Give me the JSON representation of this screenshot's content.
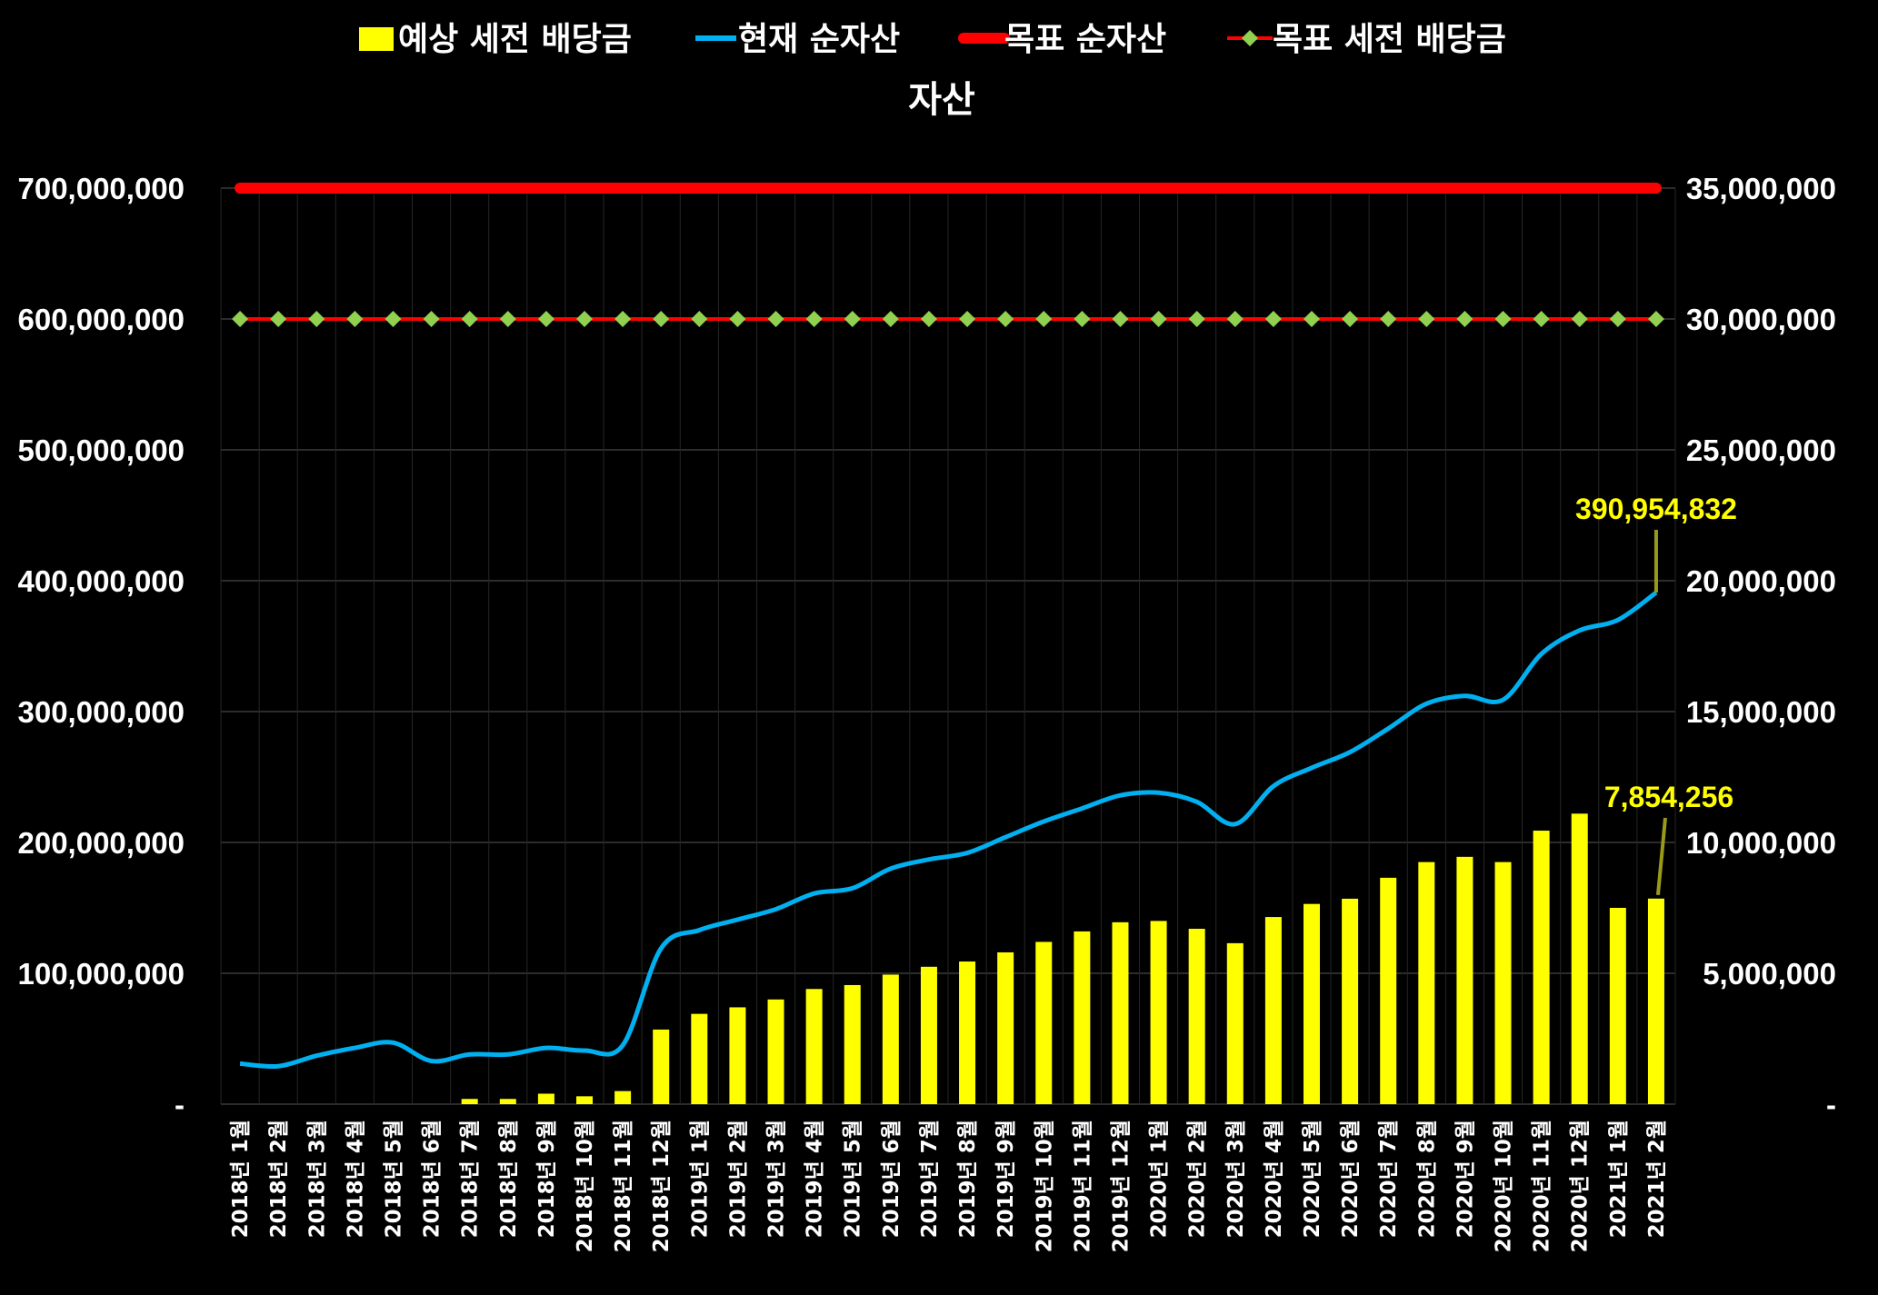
{
  "chart_data": {
    "type": "bar",
    "title": "자산",
    "legend_position": "top",
    "grid": true,
    "categories": [
      "2018년 1월",
      "2018년 2월",
      "2018년 3월",
      "2018년 4월",
      "2018년 5월",
      "2018년 6월",
      "2018년 7월",
      "2018년 8월",
      "2018년 9월",
      "2018년 10월",
      "2018년 11월",
      "2018년 12월",
      "2019년 1월",
      "2019년 2월",
      "2019년 3월",
      "2019년 4월",
      "2019년 5월",
      "2019년 6월",
      "2019년 7월",
      "2019년 8월",
      "2019년 9월",
      "2019년 10월",
      "2019년 11월",
      "2019년 12월",
      "2020년 1월",
      "2020년 2월",
      "2020년 3월",
      "2020년 4월",
      "2020년 5월",
      "2020년 6월",
      "2020년 7월",
      "2020년 8월",
      "2020년 9월",
      "2020년 10월",
      "2020년 11월",
      "2020년 12월",
      "2021년 1월",
      "2021년 2월"
    ],
    "y_left": {
      "ylim": [
        0,
        700000000
      ],
      "ticks": [
        0,
        100000000,
        200000000,
        300000000,
        400000000,
        500000000,
        600000000,
        700000000
      ],
      "tick_labels": [
        "-",
        "100,000,000",
        "200,000,000",
        "300,000,000",
        "400,000,000",
        "500,000,000",
        "600,000,000",
        "700,000,000"
      ]
    },
    "y_right": {
      "ylim": [
        0,
        35000000
      ],
      "ticks": [
        0,
        5000000,
        10000000,
        15000000,
        20000000,
        25000000,
        30000000,
        35000000
      ],
      "tick_labels": [
        "-",
        "5,000,000",
        "10,000,000",
        "15,000,000",
        "20,000,000",
        "25,000,000",
        "30,000,000",
        "35,000,000"
      ]
    },
    "series": [
      {
        "name": "예상 세전 배당금",
        "type": "bar",
        "axis": "right",
        "color": "#ffff00",
        "values": [
          0,
          0,
          0,
          0,
          0,
          0,
          200000,
          200000,
          400000,
          300000,
          500000,
          2850000,
          3450000,
          3700000,
          4000000,
          4400000,
          4550000,
          4950000,
          5250000,
          5450000,
          5800000,
          6200000,
          6600000,
          6950000,
          7000000,
          6700000,
          6150000,
          7150000,
          7650000,
          7850000,
          8650000,
          9250000,
          9450000,
          9250000,
          10450000,
          11100000,
          7500000,
          7854256
        ]
      },
      {
        "name": "현재 순자산",
        "type": "line",
        "axis": "left",
        "color": "#00b0f0",
        "values": [
          31000000,
          29000000,
          37000000,
          43000000,
          47000000,
          33000000,
          38000000,
          38000000,
          43000000,
          41000000,
          45000000,
          119000000,
          133000000,
          141000000,
          149000000,
          161000000,
          165000000,
          180000000,
          187000000,
          192000000,
          204000000,
          216000000,
          226000000,
          236000000,
          238000000,
          231000000,
          214000000,
          243000000,
          257000000,
          269000000,
          287000000,
          306000000,
          312000000,
          309000000,
          344000000,
          362000000,
          370000000,
          390954832
        ]
      },
      {
        "name": "목표 순자산",
        "type": "line",
        "axis": "left",
        "color": "#ff0000",
        "values": [
          700000000,
          700000000,
          700000000,
          700000000,
          700000000,
          700000000,
          700000000,
          700000000,
          700000000,
          700000000,
          700000000,
          700000000,
          700000000,
          700000000,
          700000000,
          700000000,
          700000000,
          700000000,
          700000000,
          700000000,
          700000000,
          700000000,
          700000000,
          700000000,
          700000000,
          700000000,
          700000000,
          700000000,
          700000000,
          700000000,
          700000000,
          700000000,
          700000000,
          700000000,
          700000000,
          700000000,
          700000000,
          700000000
        ]
      },
      {
        "name": "목표 세전 배당금",
        "type": "line",
        "axis": "right",
        "color": "#ff0000",
        "marker_color": "#92d050",
        "values": [
          30000000,
          30000000,
          30000000,
          30000000,
          30000000,
          30000000,
          30000000,
          30000000,
          30000000,
          30000000,
          30000000,
          30000000,
          30000000,
          30000000,
          30000000,
          30000000,
          30000000,
          30000000,
          30000000,
          30000000,
          30000000,
          30000000,
          30000000,
          30000000,
          30000000,
          30000000,
          30000000,
          30000000,
          30000000,
          30000000,
          30000000,
          30000000,
          30000000,
          30000000,
          30000000,
          30000000,
          30000000,
          30000000
        ]
      }
    ],
    "annotations": [
      {
        "text": "390,954,832",
        "series": "현재 순자산",
        "index": 37,
        "color": "#ffff00"
      },
      {
        "text": "7,854,256",
        "series": "예상 세전 배당금",
        "index": 37,
        "color": "#ffff00"
      }
    ]
  }
}
